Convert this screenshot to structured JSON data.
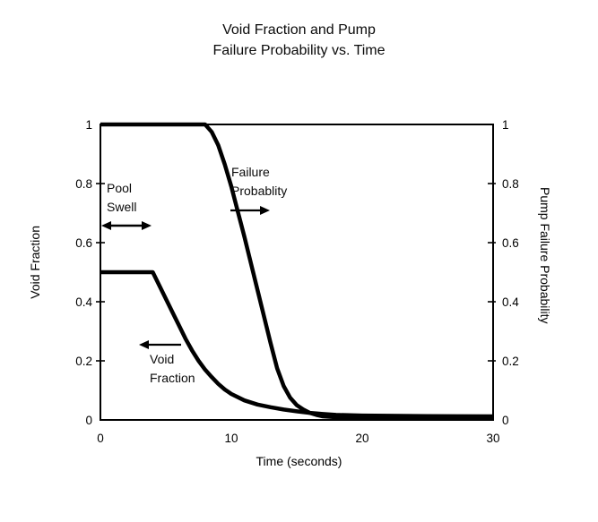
{
  "title": {
    "line1": "Void Fraction and Pump",
    "line2": "Failure Probability vs. Time"
  },
  "axes": {
    "left": {
      "label": "Void Fraction",
      "tick_labels": [
        "1",
        "0.8",
        "0.6",
        "0.4",
        "0.2",
        "0"
      ],
      "tick_values": [
        1,
        0.8,
        0.6,
        0.4,
        0.2,
        0
      ]
    },
    "right": {
      "label": "Pump Failure Probability",
      "tick_labels": [
        "1",
        "0.8",
        "0.6",
        "0.4",
        "0.2",
        "0"
      ],
      "tick_values": [
        1,
        0.8,
        0.6,
        0.4,
        0.2,
        0
      ]
    },
    "bottom": {
      "label": "Time (seconds)",
      "tick_labels": [
        "0",
        "10",
        "20",
        "30"
      ],
      "tick_values": [
        0,
        10,
        20,
        30
      ]
    }
  },
  "annotations": {
    "pool_swell": {
      "line1": "Pool",
      "line2": "Swell"
    },
    "failure": {
      "line1": "Failure",
      "line2": "Probablity"
    },
    "void": {
      "line1": "Void",
      "line2": "Fraction"
    }
  },
  "colors": {
    "line": "#000000",
    "axis": "#000000",
    "background": "#ffffff",
    "text": "#000000"
  },
  "chart_data": {
    "type": "line",
    "title": "Void Fraction and Pump Failure Probability vs. Time",
    "xlabel": "Time (seconds)",
    "ylabel_left": "Void Fraction",
    "ylabel_right": "Pump Failure Probability",
    "xlim": [
      0,
      30
    ],
    "ylim": [
      0,
      1
    ],
    "grid": false,
    "legend_position": "none",
    "series": [
      {
        "name": "Failure Probablity",
        "axis": "right",
        "points": [
          [
            0,
            1
          ],
          [
            8,
            1
          ],
          [
            8.5,
            0.975
          ],
          [
            9,
            0.93
          ],
          [
            9.5,
            0.865
          ],
          [
            10,
            0.79
          ],
          [
            10.5,
            0.705
          ],
          [
            11,
            0.62
          ],
          [
            11.5,
            0.53
          ],
          [
            12,
            0.44
          ],
          [
            12.5,
            0.35
          ],
          [
            13,
            0.26
          ],
          [
            13.5,
            0.175
          ],
          [
            14,
            0.115
          ],
          [
            14.5,
            0.075
          ],
          [
            15,
            0.05
          ],
          [
            15.5,
            0.035
          ],
          [
            16,
            0.024
          ],
          [
            16.5,
            0.017
          ],
          [
            17,
            0.012
          ],
          [
            18,
            0.009
          ],
          [
            20,
            0.008
          ],
          [
            25,
            0.008
          ],
          [
            30,
            0.008
          ]
        ]
      },
      {
        "name": "Void Fraction",
        "axis": "left",
        "points": [
          [
            0,
            0.5
          ],
          [
            4,
            0.5
          ],
          [
            4.5,
            0.455
          ],
          [
            5,
            0.41
          ],
          [
            5.5,
            0.365
          ],
          [
            6,
            0.32
          ],
          [
            6.5,
            0.275
          ],
          [
            7,
            0.235
          ],
          [
            7.5,
            0.2
          ],
          [
            8,
            0.17
          ],
          [
            8.5,
            0.145
          ],
          [
            9,
            0.122
          ],
          [
            9.5,
            0.103
          ],
          [
            10,
            0.088
          ],
          [
            11,
            0.066
          ],
          [
            12,
            0.052
          ],
          [
            13,
            0.043
          ],
          [
            14,
            0.035
          ],
          [
            15,
            0.029
          ],
          [
            16,
            0.024
          ],
          [
            17,
            0.02
          ],
          [
            18,
            0.017
          ],
          [
            20,
            0.015
          ],
          [
            25,
            0.013
          ],
          [
            30,
            0.012
          ]
        ]
      }
    ]
  }
}
